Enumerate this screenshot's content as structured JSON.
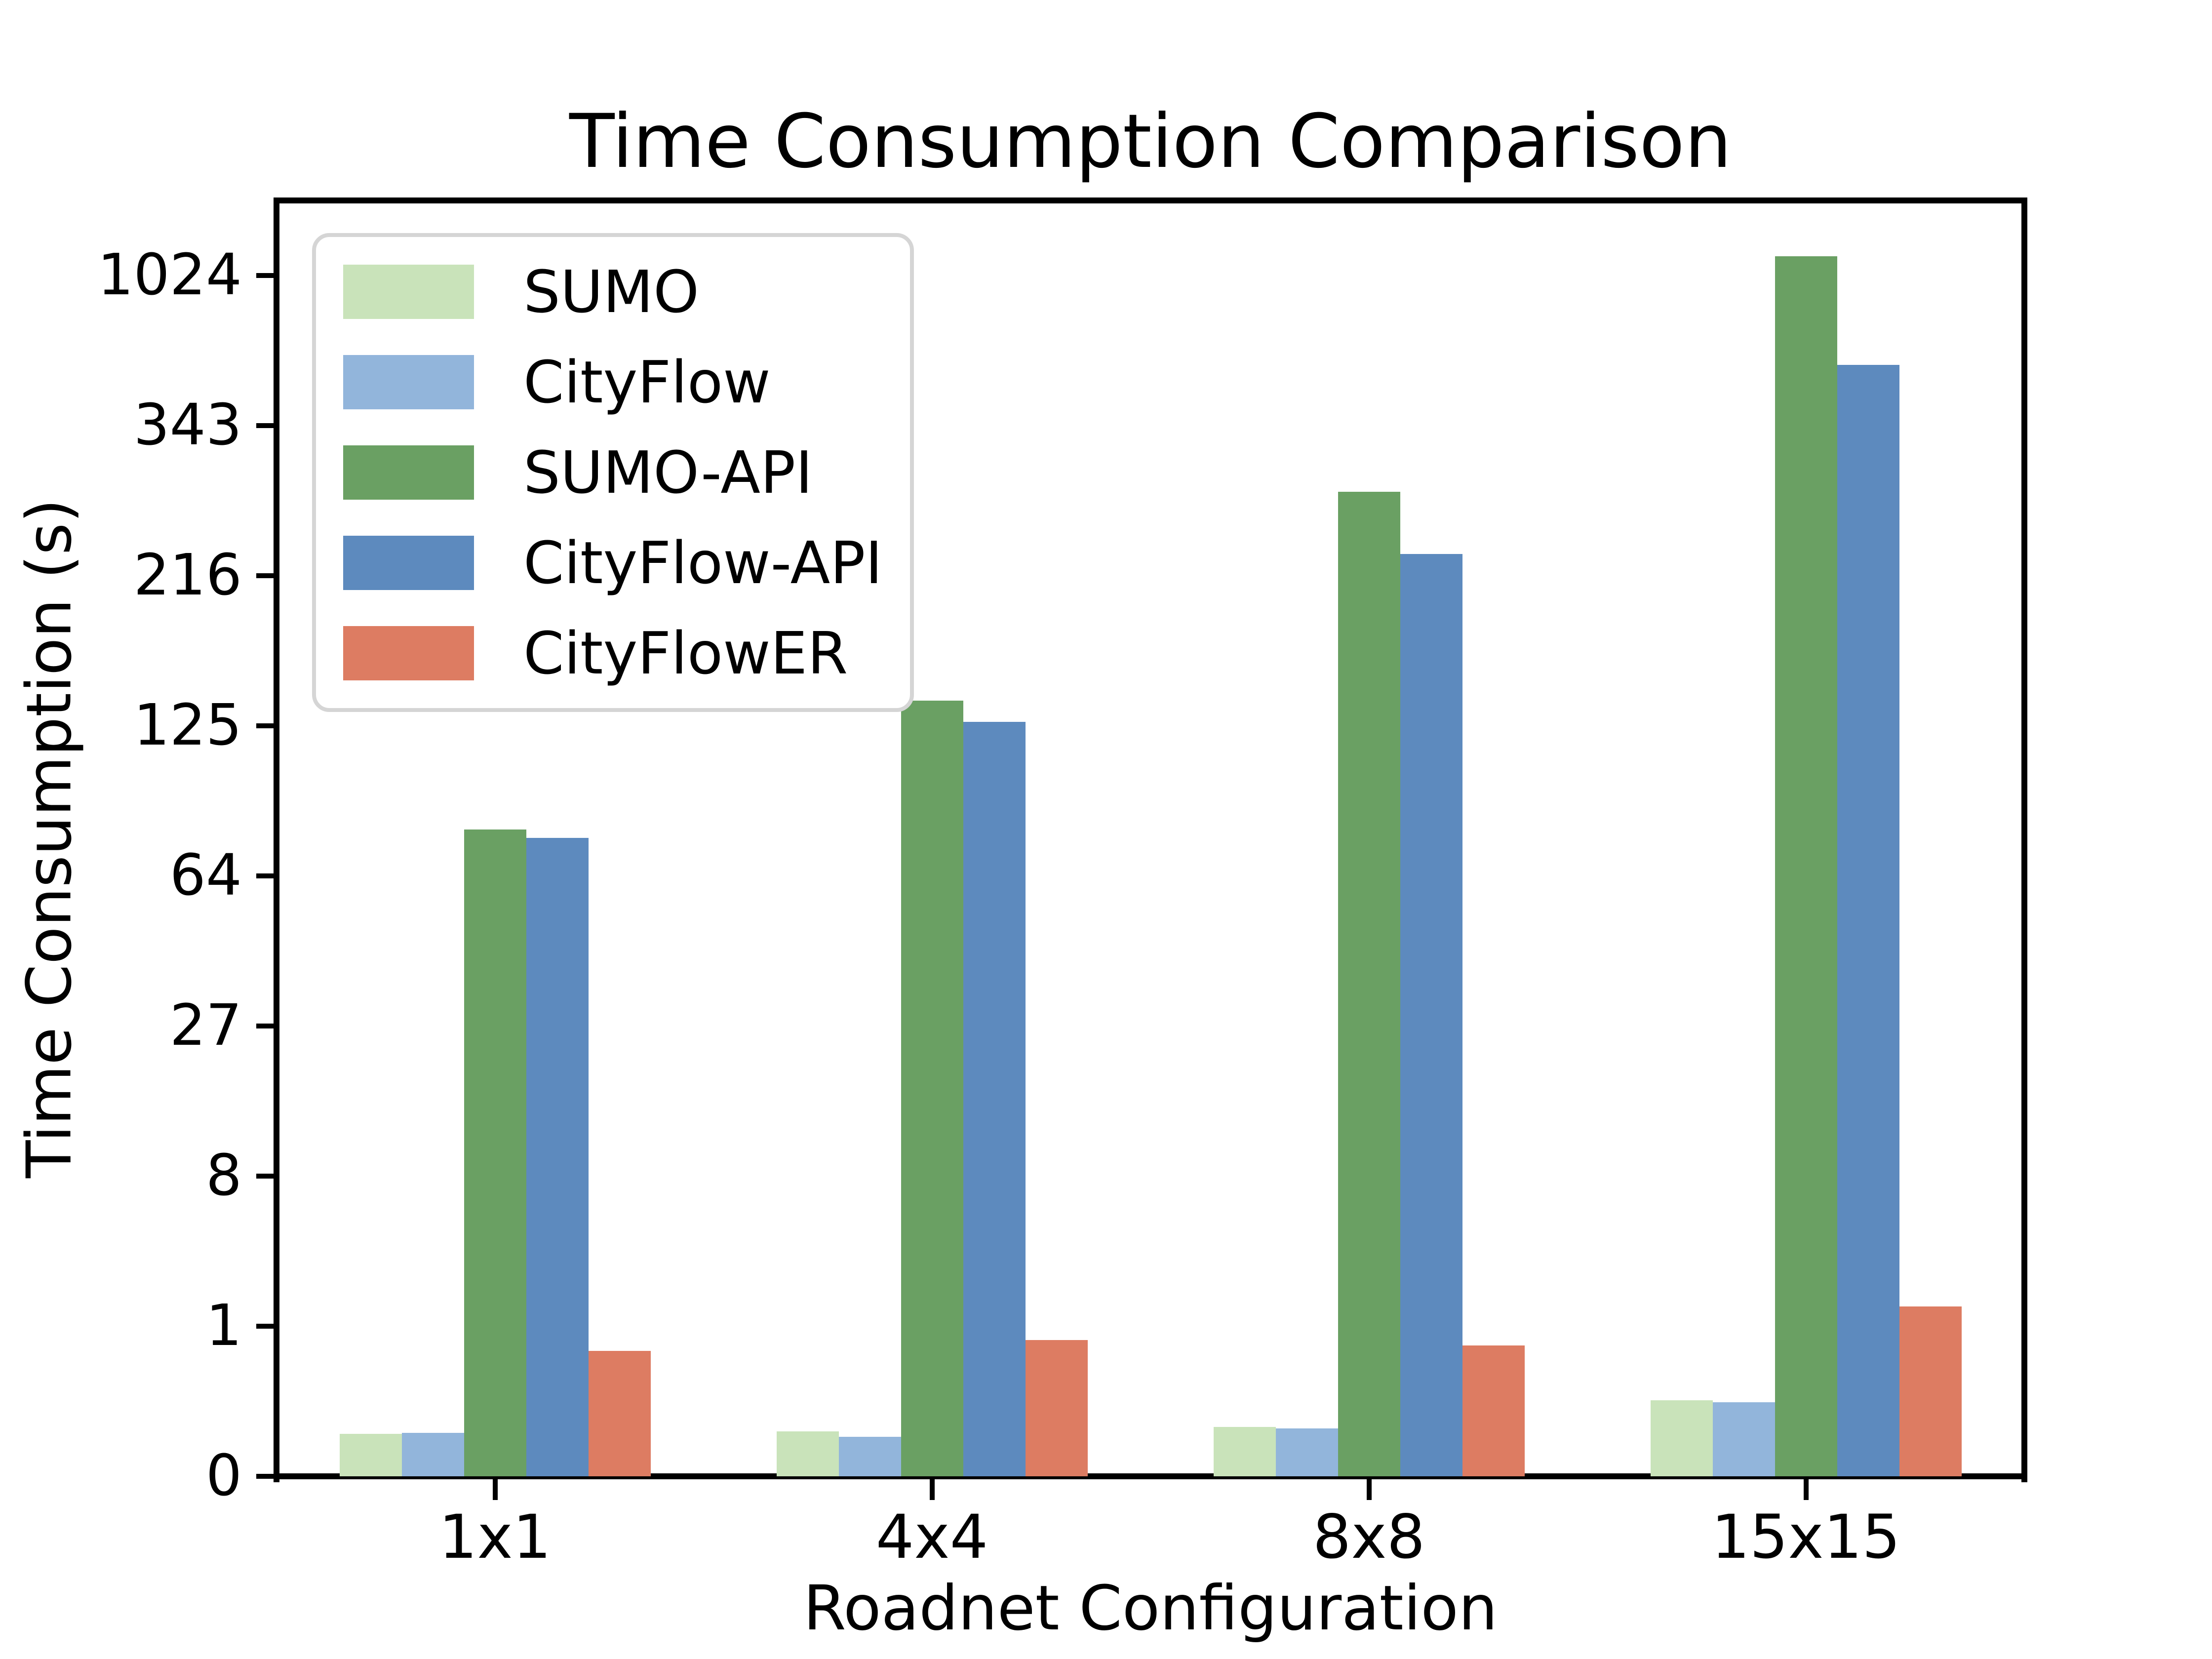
{
  "figure": {
    "title": "Time Consumption Comparison"
  },
  "axes": {
    "xlabel": "Roadnet Configuration",
    "ylabel": "Time Consumption (s)",
    "ytick_labels": [
      "0",
      "1",
      "8",
      "27",
      "64",
      "125",
      "216",
      "343",
      "1024"
    ],
    "xtick_labels": [
      "1x1",
      "4x4",
      "8x8",
      "15x15"
    ]
  },
  "legend": {
    "position": "upper left",
    "entries": [
      "SUMO",
      "CityFlow",
      "SUMO-API",
      "CityFlow-API",
      "CityFlowER"
    ]
  },
  "chart_data": {
    "type": "bar",
    "title": "Time Consumption Comparison",
    "xlabel": "Roadnet Configuration",
    "ylabel": "Time Consumption (s)",
    "categories": [
      "1x1",
      "4x4",
      "8x8",
      "15x15"
    ],
    "series": [
      {
        "name": "SUMO",
        "color": "#c9e3ba",
        "values": [
          0.023,
          0.027,
          0.036,
          0.13
        ]
      },
      {
        "name": "CityFlow",
        "color": "#92b5db",
        "values": [
          0.024,
          0.018,
          0.032,
          0.12
        ]
      },
      {
        "name": "SUMO-API",
        "color": "#6aa063",
        "values": [
          80,
          138,
          282,
          1150
        ]
      },
      {
        "name": "CityFlow-API",
        "color": "#5d8abe",
        "values": [
          77,
          127,
          232,
          560
        ]
      },
      {
        "name": "CityFlowER",
        "color": "#dd7c62",
        "values": [
          0.58,
          0.75,
          0.66,
          1.45
        ]
      }
    ],
    "yscale": "cube-root (ticks at 0,1,8,27,64,125,216,343 then 1024; all ticks equally spaced)",
    "ytick_values": [
      0,
      1,
      8,
      27,
      64,
      125,
      216,
      343,
      1024
    ],
    "ylim_units": [
      0,
      8.5
    ],
    "grid": false,
    "legend_position": "upper left"
  }
}
